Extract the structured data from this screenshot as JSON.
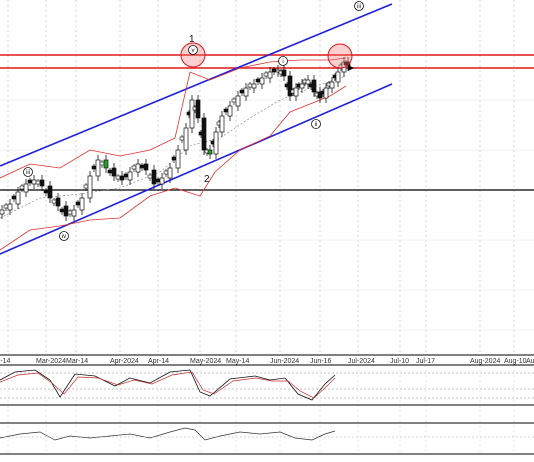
{
  "chart_data": {
    "type": "candlestick",
    "panels": [
      "price",
      "stochastic-oscillator",
      "momentum-oscillator"
    ],
    "x_tick_labels": [
      "r-14",
      "Mar-2024",
      "Mar-14",
      "Apr-2024",
      "Apr-14",
      "May-2024",
      "May-14",
      "Jun-2024",
      "Jun-16",
      "Jul-2024",
      "Jul-10",
      "Jul-17",
      "Aug-2024",
      "Aug-10",
      "Au"
    ],
    "wave_labels": [
      {
        "text": "1",
        "wave": "peak"
      },
      {
        "text": "2",
        "wave": "trough"
      }
    ],
    "circle_markers": [
      "v",
      "i",
      "ii",
      "iii",
      "iv",
      "iii",
      "iv"
    ],
    "colors": {
      "channel": "#2020dd",
      "bollinger": "#e03030",
      "resistance": "#e01818",
      "support": "#000000",
      "up_highlight": "#2aa02a",
      "candle_body": "#111111"
    }
  }
}
